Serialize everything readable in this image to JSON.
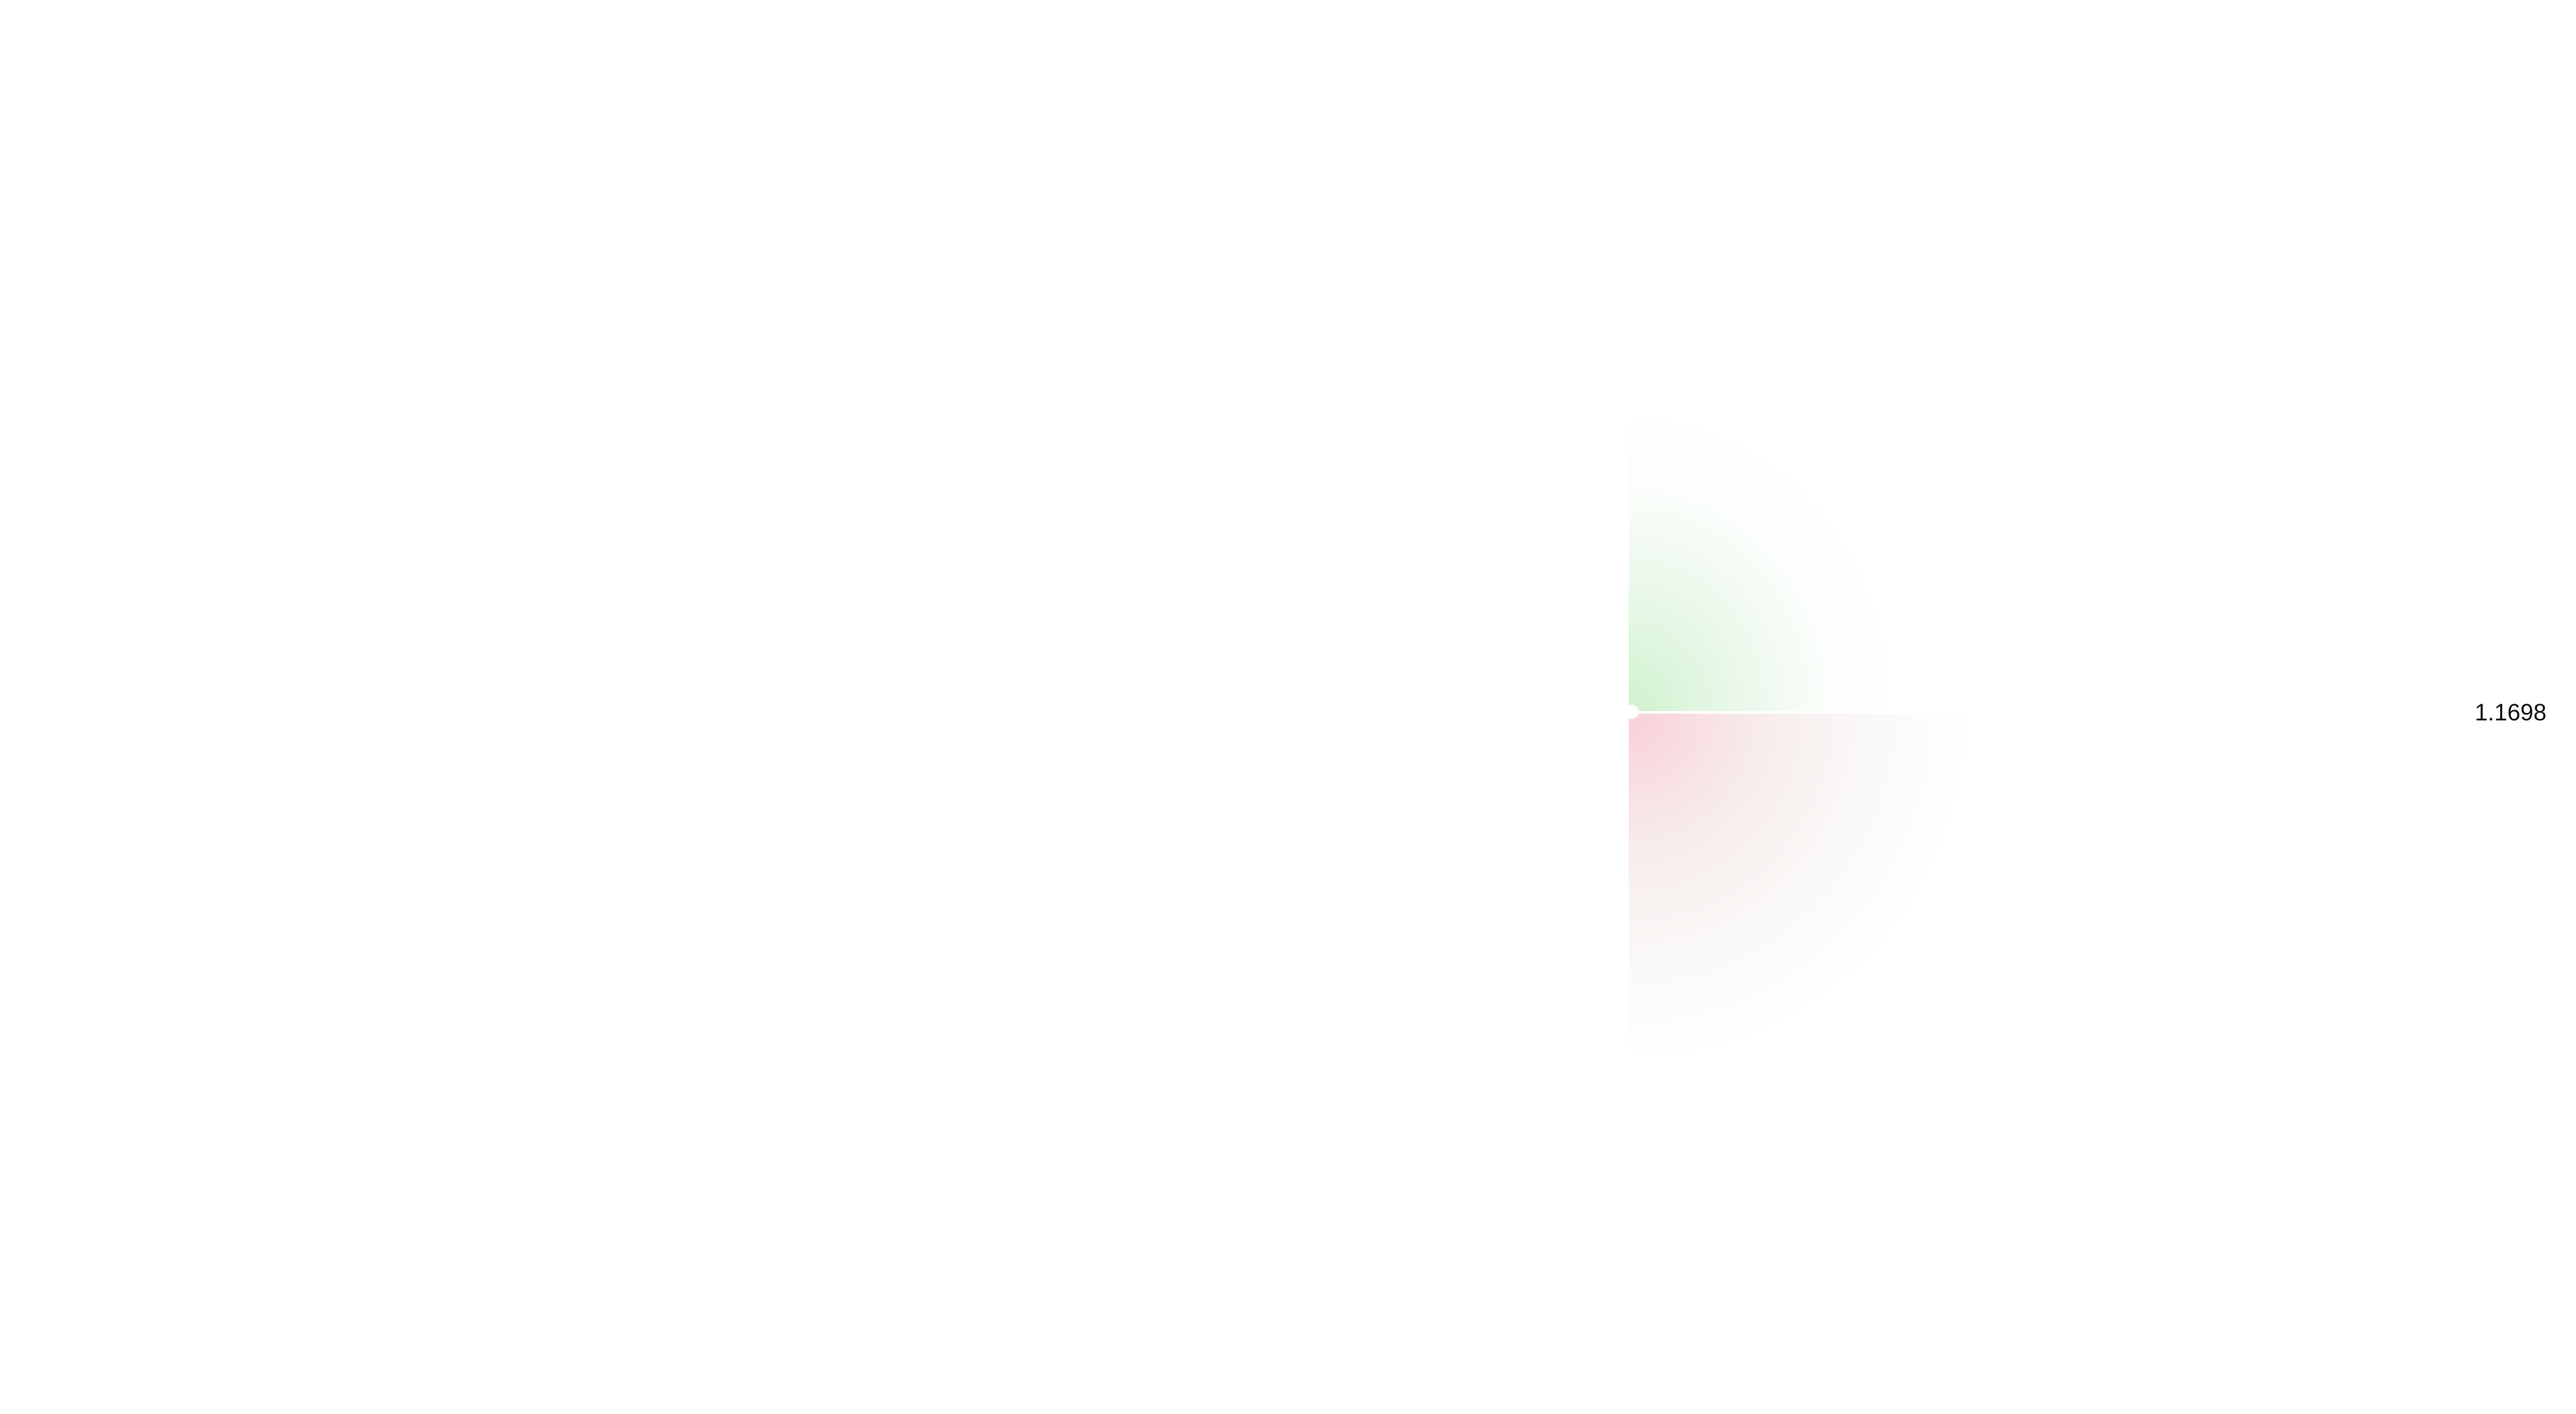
{
  "widget": {
    "current_value": "1.1698",
    "colors": {
      "background": "#ffffff",
      "upper_zone": "#bae8ba",
      "lower_zone": "#f7c4cc",
      "value_text": "#111111",
      "marker": "#ffffff"
    }
  }
}
